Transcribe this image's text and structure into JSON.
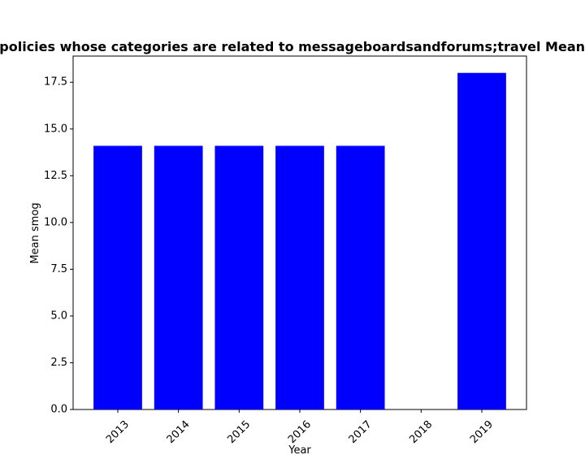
{
  "chart_data": {
    "type": "bar",
    "title": "Mean smog of privacy policies whose categories are related to messageboardsandforums;travel Mean smog in privacy policies",
    "xlabel": "Year",
    "ylabel": "Mean smog",
    "categories": [
      "2013",
      "2014",
      "2015",
      "2016",
      "2017",
      "2018",
      "2019"
    ],
    "values": [
      14.1,
      14.1,
      14.1,
      14.1,
      14.1,
      0,
      18.0
    ],
    "ylim": [
      0,
      18.9
    ],
    "yticks": [
      "0.0",
      "2.5",
      "5.0",
      "7.5",
      "10.0",
      "12.5",
      "15.0",
      "17.5"
    ],
    "grid": false,
    "bar_color": "#0000ff"
  }
}
